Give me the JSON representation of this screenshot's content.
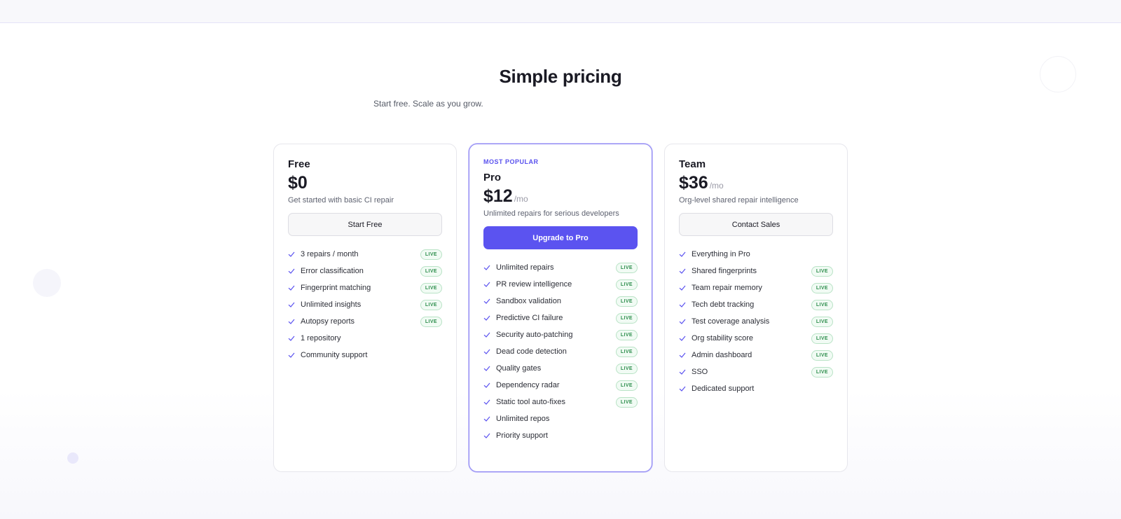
{
  "header": {
    "title": "Simple pricing",
    "subtitle": "Start free. Scale as you grow."
  },
  "plans": [
    {
      "name": "Free",
      "price": "$0",
      "description": "Get started with basic CI repair",
      "button": "Start Free",
      "features": [
        {
          "text": "3 repairs / month",
          "tag": "LIVE"
        },
        {
          "text": "Error classification",
          "tag": "LIVE"
        },
        {
          "text": "Fingerprint matching",
          "tag": "LIVE"
        },
        {
          "text": "Unlimited insights",
          "tag": "LIVE"
        },
        {
          "text": "Autopsy reports",
          "tag": "LIVE"
        },
        {
          "text": "1 repository"
        },
        {
          "text": "Community support"
        }
      ]
    },
    {
      "badge": "MOST POPULAR",
      "name": "Pro",
      "price": "$12",
      "period": "/mo",
      "description": "Unlimited repairs for serious developers",
      "button": "Upgrade to Pro",
      "features": [
        {
          "text": "Unlimited repairs",
          "tag": "LIVE"
        },
        {
          "text": "PR review intelligence",
          "tag": "LIVE"
        },
        {
          "text": "Sandbox validation",
          "tag": "LIVE"
        },
        {
          "text": "Predictive CI failure",
          "tag": "LIVE"
        },
        {
          "text": "Security auto-patching",
          "tag": "LIVE"
        },
        {
          "text": "Dead code detection",
          "tag": "LIVE"
        },
        {
          "text": "Quality gates",
          "tag": "LIVE"
        },
        {
          "text": "Dependency radar",
          "tag": "LIVE"
        },
        {
          "text": "Static tool auto-fixes",
          "tag": "LIVE"
        },
        {
          "text": "Unlimited repos"
        },
        {
          "text": "Priority support"
        }
      ]
    },
    {
      "name": "Team",
      "price": "$36",
      "period": "/mo",
      "description": "Org-level shared repair intelligence",
      "button": "Contact Sales",
      "features": [
        {
          "text": "Everything in Pro"
        },
        {
          "text": "Shared fingerprints",
          "tag": "LIVE"
        },
        {
          "text": "Team repair memory",
          "tag": "LIVE"
        },
        {
          "text": "Tech debt tracking",
          "tag": "LIVE"
        },
        {
          "text": "Test coverage analysis",
          "tag": "LIVE"
        },
        {
          "text": "Org stability score",
          "tag": "LIVE"
        },
        {
          "text": "Admin dashboard",
          "tag": "LIVE"
        },
        {
          "text": "SSO",
          "tag": "LIVE"
        },
        {
          "text": "Dedicated support"
        }
      ]
    }
  ]
}
